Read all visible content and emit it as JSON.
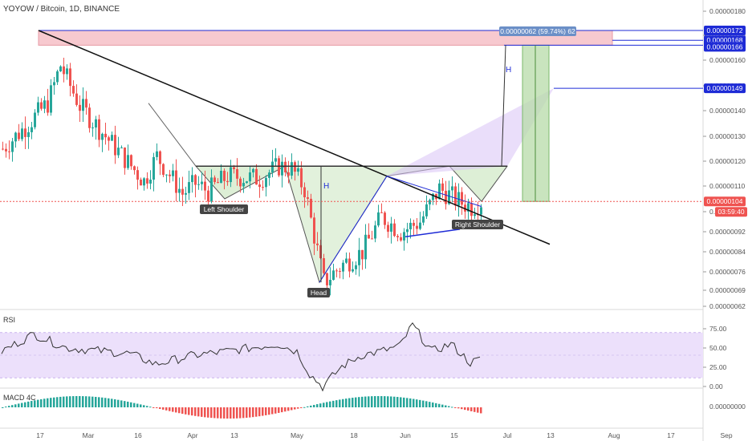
{
  "header": {
    "title": "YOYOW / Bitcoin, 1D, BINANCE"
  },
  "colors": {
    "up": "#26a69a",
    "down": "#ef5350",
    "axis_text": "#555555",
    "level_blue": "#1e2bd6",
    "target_pink": "#f7c9cf",
    "target_green": "#b7dba8",
    "pattern_fill": "#cfe8c4",
    "rsi_band": "#ece0fb",
    "rsi_line": "#333333",
    "price_line": "#ef5350"
  },
  "chart_data": [
    {
      "type": "candlestick",
      "name": "price",
      "ylim": [
        6e-07,
        1.82e-06
      ],
      "y_ticks": [
        "0.00000180",
        "0.00000170",
        "0.00000160",
        "0.00000150",
        "0.00000140",
        "0.00000130",
        "0.00000120",
        "0.00000110",
        "0.00000100",
        "0.00000092",
        "0.00000084",
        "0.00000076",
        "0.00000069",
        "0.00000062"
      ],
      "y_tick_values": [
        1.8,
        1.7,
        1.6,
        1.5,
        1.4,
        1.3,
        1.2,
        1.1,
        1.0,
        0.92,
        0.84,
        0.76,
        0.69,
        0.62
      ],
      "x_ticks": [
        "17",
        "Mar",
        "16",
        "Apr",
        "13",
        "May",
        "18",
        "Jun",
        "15",
        "Jul",
        "13",
        "Aug",
        "17",
        "Sep"
      ],
      "last_price": "0.00000104",
      "countdown": "03:59:40",
      "level_labels": [
        "0.00000172",
        "0.00000168",
        "0.00000166",
        "0.00000149"
      ],
      "level_values": [
        1.72,
        1.68,
        1.66,
        1.49
      ],
      "projection_label": "0.00000062 (59.74%) 62",
      "annotations": [
        "Left Shoulder",
        "Head",
        "Right Shoulder",
        "H",
        "H"
      ]
    },
    {
      "type": "line",
      "name": "RSI",
      "label": "RSI",
      "ylim": [
        0,
        100
      ],
      "band": [
        20,
        80
      ],
      "y_ticks": [
        "75.00",
        "50.00",
        "25.00",
        "0.00"
      ],
      "y_tick_values": [
        75,
        50,
        25,
        0
      ]
    },
    {
      "type": "bar",
      "name": "MACD",
      "label": "MACD 4C",
      "y_ticks": [
        "0.00000000"
      ]
    }
  ]
}
